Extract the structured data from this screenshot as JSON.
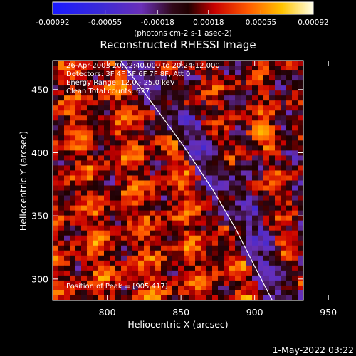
{
  "chart_data": {
    "type": "heatmap",
    "title": "Reconstructed RHESSI Image",
    "xlabel": "Heliocentric X (arcsec)",
    "ylabel": "Heliocentric Y (arcsec)",
    "xlim": [
      763,
      933
    ],
    "ylim": [
      283,
      473
    ],
    "x_ticks": [
      "800",
      "850",
      "900",
      "950"
    ],
    "x_tick_values": [
      800,
      850,
      900,
      950
    ],
    "y_ticks": [
      "300",
      "350",
      "400",
      "450"
    ],
    "y_tick_values": [
      300,
      350,
      400,
      450
    ],
    "grid": false,
    "colorbar": {
      "tick_labels": [
        "-0.00092",
        "-0.00055",
        "-0.00018",
        "0.00018",
        "0.00055",
        "0.00092"
      ],
      "range": [
        -0.00092,
        0.00092
      ],
      "unit_label": "(photons cm-2 s-1 asec-2)"
    },
    "annotations": [
      "26-Apr-2003 20:22:40.000 to 20:24:12.000",
      "Detectors: 3F 4F 5F 6F 7F 8F, Att 0",
      "Energy Range: 12.0 - 25.0 keV",
      "Clean    Total counts: 627.",
      "Position of Peak = [905,417]"
    ],
    "limb_curve_points": [
      [
        809,
        473
      ],
      [
        830,
        440
      ],
      [
        852,
        405
      ],
      [
        872,
        370
      ],
      [
        887,
        340
      ],
      [
        900,
        310
      ],
      [
        912,
        283
      ]
    ],
    "peak": [
      905,
      417
    ],
    "grid_size": [
      44,
      48
    ],
    "footer_timestamp": "1-May-2022 03:22"
  }
}
